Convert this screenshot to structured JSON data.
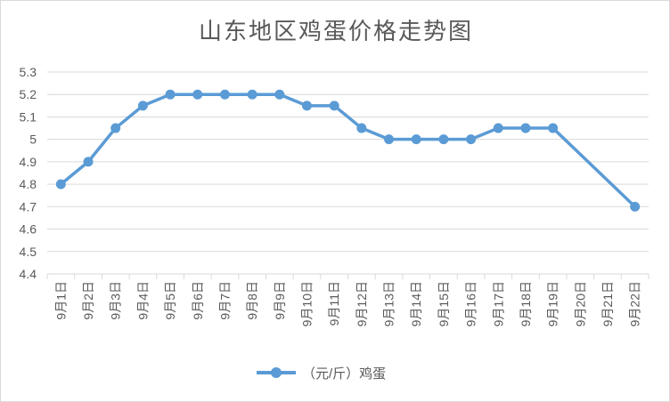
{
  "chart_data": {
    "type": "line",
    "title": "山东地区鸡蛋价格走势图",
    "categories": [
      "9月1日",
      "9月2日",
      "9月3日",
      "9月4日",
      "9月5日",
      "9月6日",
      "9月7日",
      "9月8日",
      "9月9日",
      "9月10日",
      "9月11日",
      "9月12日",
      "9月13日",
      "9月14日",
      "9月15日",
      "9月16日",
      "9月17日",
      "9月18日",
      "9月19日",
      "9月20日",
      "9月21日",
      "9月22日"
    ],
    "series": [
      {
        "name": "（元/斤）鸡蛋",
        "color": "#5b9bd5",
        "values": [
          4.8,
          4.9,
          5.05,
          5.15,
          5.2,
          5.2,
          5.2,
          5.2,
          5.2,
          5.15,
          5.15,
          5.05,
          5.0,
          5.0,
          5.0,
          5.0,
          5.05,
          5.05,
          5.05,
          null,
          null,
          4.7
        ]
      }
    ],
    "y_ticks": [
      "4.4",
      "4.5",
      "4.6",
      "4.7",
      "4.8",
      "4.9",
      "5",
      "5.1",
      "5.2",
      "5.3"
    ],
    "ylim": [
      4.4,
      5.3
    ],
    "grid": true,
    "legend_position": "bottom",
    "gridline_color": "#d9d9d9"
  }
}
